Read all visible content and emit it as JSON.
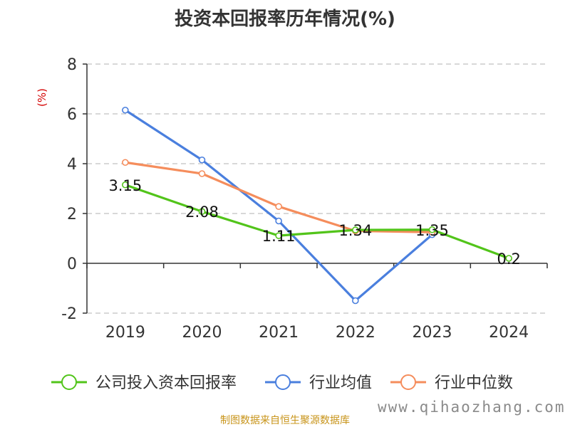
{
  "chart_data": {
    "type": "line",
    "title": "投资本回报率历年情况(%)",
    "ylabel": "(%)",
    "xlabel": "",
    "categories": [
      "2019",
      "2020",
      "2021",
      "2022",
      "2023",
      "2024"
    ],
    "ylim": [
      -2,
      8
    ],
    "yticks": [
      -2,
      0,
      2,
      4,
      6,
      8
    ],
    "grid": true,
    "legend_position": "bottom",
    "series": [
      {
        "name": "公司投入资本回报率",
        "color": "#52c41a",
        "values": [
          3.15,
          2.08,
          1.11,
          1.34,
          1.35,
          0.2
        ],
        "labels": [
          "3.15",
          "2.08",
          "1.11",
          "1.34",
          "1.35",
          "0.2"
        ]
      },
      {
        "name": "行业均值",
        "color": "#4a7fde",
        "values": [
          6.15,
          4.15,
          1.7,
          -1.5,
          1.15,
          null
        ]
      },
      {
        "name": "行业中位数",
        "color": "#f58d5c",
        "values": [
          4.05,
          3.6,
          2.28,
          1.3,
          1.25,
          null
        ]
      }
    ]
  },
  "footer": {
    "source": "制图数据来自恒生聚源数据库",
    "watermark": "www.qihaozhang.com"
  }
}
